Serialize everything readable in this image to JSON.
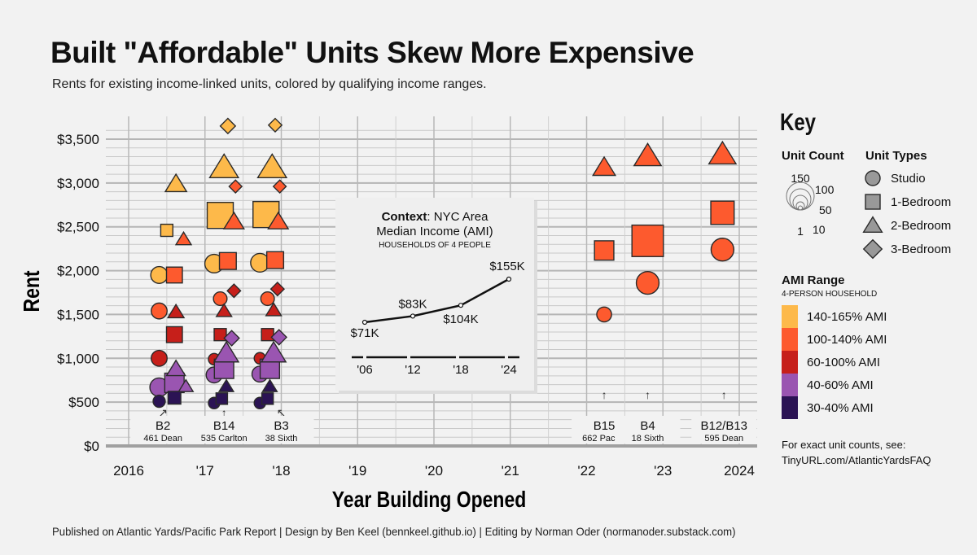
{
  "title": "Built \"Affordable\" Units Skew More Expensive",
  "subtitle": "Rents for existing income-linked units, colored by qualifying income ranges.",
  "credit": "Published on Atlantic Yards/Pacific Park Report | Design by Ben Keel (bennkeel.github.io) | Editing by Norman Oder (normanoder.substack.com)",
  "colors": {
    "ami_140_165": "#fdb94a",
    "ami_100_140": "#fd5a2e",
    "ami_60_100": "#c61f1a",
    "ami_40_60": "#9a55b1",
    "ami_30_40": "#2b1354"
  },
  "chart_data": {
    "type": "scatter",
    "title": "Built \"Affordable\" Units Skew More Expensive",
    "xlabel": "Year Building Opened",
    "ylabel": "Rent",
    "xlim": [
      2015.8,
      2024.4
    ],
    "ylim": [
      0,
      3600
    ],
    "x_ticks": [
      {
        "value": 2016,
        "label": "2016"
      },
      {
        "value": 2017,
        "label": "'17"
      },
      {
        "value": 2018,
        "label": "'18"
      },
      {
        "value": 2019,
        "label": "'19"
      },
      {
        "value": 2020,
        "label": "'20"
      },
      {
        "value": 2021,
        "label": "'21"
      },
      {
        "value": 2022,
        "label": "'22"
      },
      {
        "value": 2023,
        "label": "'23"
      },
      {
        "value": 2024,
        "label": "2024"
      }
    ],
    "y_ticks": [
      {
        "value": 0,
        "label": "$0"
      },
      {
        "value": 500,
        "label": "$500"
      },
      {
        "value": 1000,
        "label": "$1,000"
      },
      {
        "value": 1500,
        "label": "$1,500"
      },
      {
        "value": 2000,
        "label": "$2,000"
      },
      {
        "value": 2500,
        "label": "$2,500"
      },
      {
        "value": 3000,
        "label": "$3,000"
      },
      {
        "value": 3500,
        "label": "$3,500"
      }
    ],
    "buildings": [
      {
        "name": "B2",
        "address": "461 Dean",
        "x": 2016.45,
        "arrow": "↗"
      },
      {
        "name": "B14",
        "address": "535 Carlton",
        "x": 2017.25,
        "arrow": "↑"
      },
      {
        "name": "B3",
        "address": "38 Sixth",
        "x": 2018.0,
        "arrow": "↖"
      },
      {
        "name": "B15",
        "address": "662 Pacific",
        "x": 2022.23,
        "arrow": "↑"
      },
      {
        "name": "B4",
        "address": "18 Sixth",
        "x": 2022.8,
        "arrow": "↑"
      },
      {
        "name": "B12/B13",
        "address": "595 Dean",
        "x": 2023.8,
        "arrow": "↑"
      }
    ],
    "points": [
      {
        "x": 2016.4,
        "y": 670,
        "type": "studio",
        "ami": "40-60",
        "count": 40
      },
      {
        "x": 2016.4,
        "y": 510,
        "type": "studio",
        "ami": "30-40",
        "count": 10
      },
      {
        "x": 2016.4,
        "y": 1000,
        "type": "studio",
        "ami": "60-100",
        "count": 25
      },
      {
        "x": 2016.4,
        "y": 1540,
        "type": "studio",
        "ami": "100-140",
        "count": 25
      },
      {
        "x": 2016.4,
        "y": 1950,
        "type": "studio",
        "ami": "140-165",
        "count": 30
      },
      {
        "x": 2016.6,
        "y": 720,
        "type": "1br",
        "ami": "40-60",
        "count": 45
      },
      {
        "x": 2016.6,
        "y": 550,
        "type": "1br",
        "ami": "30-40",
        "count": 12
      },
      {
        "x": 2016.6,
        "y": 1270,
        "type": "1br",
        "ami": "60-100",
        "count": 25
      },
      {
        "x": 2016.6,
        "y": 1950,
        "type": "1br",
        "ami": "100-140",
        "count": 25
      },
      {
        "x": 2016.5,
        "y": 2460,
        "type": "1br",
        "ami": "140-165",
        "count": 10
      },
      {
        "x": 2016.75,
        "y": 680,
        "type": "2br",
        "ami": "40-60",
        "count": 8
      },
      {
        "x": 2016.62,
        "y": 880,
        "type": "2br",
        "ami": "40-60",
        "count": 20
      },
      {
        "x": 2016.62,
        "y": 1530,
        "type": "2br",
        "ami": "60-100",
        "count": 12
      },
      {
        "x": 2016.72,
        "y": 2360,
        "type": "2br",
        "ami": "100-140",
        "count": 10
      },
      {
        "x": 2016.62,
        "y": 2990,
        "type": "2br",
        "ami": "140-165",
        "count": 30
      },
      {
        "x": 2017.12,
        "y": 810,
        "type": "studio",
        "ami": "40-60",
        "count": 25
      },
      {
        "x": 2017.12,
        "y": 490,
        "type": "studio",
        "ami": "30-40",
        "count": 8
      },
      {
        "x": 2017.12,
        "y": 990,
        "type": "studio",
        "ami": "60-100",
        "count": 8
      },
      {
        "x": 2017.2,
        "y": 1680,
        "type": "studio",
        "ami": "100-140",
        "count": 15
      },
      {
        "x": 2017.12,
        "y": 2080,
        "type": "studio",
        "ami": "140-165",
        "count": 40
      },
      {
        "x": 2017.25,
        "y": 880,
        "type": "1br",
        "ami": "40-60",
        "count": 45
      },
      {
        "x": 2017.22,
        "y": 540,
        "type": "1br",
        "ami": "30-40",
        "count": 8
      },
      {
        "x": 2017.2,
        "y": 1270,
        "type": "1br",
        "ami": "60-100",
        "count": 10
      },
      {
        "x": 2017.3,
        "y": 2110,
        "type": "1br",
        "ami": "100-140",
        "count": 30
      },
      {
        "x": 2017.2,
        "y": 2630,
        "type": "1br",
        "ami": "140-165",
        "count": 100
      },
      {
        "x": 2017.28,
        "y": 680,
        "type": "2br",
        "ami": "30-40",
        "count": 8
      },
      {
        "x": 2017.28,
        "y": 1060,
        "type": "2br",
        "ami": "40-60",
        "count": 45
      },
      {
        "x": 2017.25,
        "y": 1540,
        "type": "2br",
        "ami": "60-100",
        "count": 10
      },
      {
        "x": 2017.38,
        "y": 2560,
        "type": "2br",
        "ami": "100-140",
        "count": 25
      },
      {
        "x": 2017.25,
        "y": 3180,
        "type": "2br",
        "ami": "140-165",
        "count": 70
      },
      {
        "x": 2017.35,
        "y": 1230,
        "type": "3br",
        "ami": "40-60",
        "count": 10
      },
      {
        "x": 2017.38,
        "y": 1770,
        "type": "3br",
        "ami": "60-100",
        "count": 6
      },
      {
        "x": 2017.4,
        "y": 2960,
        "type": "3br",
        "ami": "100-140",
        "count": 5
      },
      {
        "x": 2017.3,
        "y": 3650,
        "type": "3br",
        "ami": "140-165",
        "count": 10
      },
      {
        "x": 2017.72,
        "y": 820,
        "type": "studio",
        "ami": "40-60",
        "count": 25
      },
      {
        "x": 2017.72,
        "y": 490,
        "type": "studio",
        "ami": "30-40",
        "count": 8
      },
      {
        "x": 2017.72,
        "y": 1000,
        "type": "studio",
        "ami": "60-100",
        "count": 8
      },
      {
        "x": 2017.82,
        "y": 1680,
        "type": "studio",
        "ami": "100-140",
        "count": 15
      },
      {
        "x": 2017.72,
        "y": 2090,
        "type": "studio",
        "ami": "140-165",
        "count": 40
      },
      {
        "x": 2017.85,
        "y": 880,
        "type": "1br",
        "ami": "40-60",
        "count": 45
      },
      {
        "x": 2017.82,
        "y": 540,
        "type": "1br",
        "ami": "30-40",
        "count": 8
      },
      {
        "x": 2017.82,
        "y": 1270,
        "type": "1br",
        "ami": "60-100",
        "count": 10
      },
      {
        "x": 2017.92,
        "y": 2120,
        "type": "1br",
        "ami": "100-140",
        "count": 30
      },
      {
        "x": 2017.8,
        "y": 2640,
        "type": "1br",
        "ami": "140-165",
        "count": 100
      },
      {
        "x": 2017.85,
        "y": 680,
        "type": "2br",
        "ami": "30-40",
        "count": 8
      },
      {
        "x": 2017.9,
        "y": 1060,
        "type": "2br",
        "ami": "40-60",
        "count": 45
      },
      {
        "x": 2017.9,
        "y": 1550,
        "type": "2br",
        "ami": "60-100",
        "count": 10
      },
      {
        "x": 2017.96,
        "y": 2560,
        "type": "2br",
        "ami": "100-140",
        "count": 25
      },
      {
        "x": 2017.88,
        "y": 3180,
        "type": "2br",
        "ami": "140-165",
        "count": 70
      },
      {
        "x": 2017.97,
        "y": 1240,
        "type": "3br",
        "ami": "40-60",
        "count": 10
      },
      {
        "x": 2017.95,
        "y": 1790,
        "type": "3br",
        "ami": "60-100",
        "count": 6
      },
      {
        "x": 2017.98,
        "y": 2960,
        "type": "3br",
        "ami": "100-140",
        "count": 5
      },
      {
        "x": 2017.92,
        "y": 3660,
        "type": "3br",
        "ami": "140-165",
        "count": 6
      },
      {
        "x": 2022.23,
        "y": 1500,
        "type": "studio",
        "ami": "100-140",
        "count": 20
      },
      {
        "x": 2022.23,
        "y": 2230,
        "type": "1br",
        "ami": "100-140",
        "count": 45
      },
      {
        "x": 2022.23,
        "y": 3180,
        "type": "2br",
        "ami": "100-140",
        "count": 35
      },
      {
        "x": 2022.8,
        "y": 1860,
        "type": "studio",
        "ami": "100-140",
        "count": 70
      },
      {
        "x": 2022.8,
        "y": 2340,
        "type": "1br",
        "ami": "100-140",
        "count": 160
      },
      {
        "x": 2022.8,
        "y": 3310,
        "type": "2br",
        "ami": "100-140",
        "count": 60
      },
      {
        "x": 2023.78,
        "y": 2240,
        "type": "studio",
        "ami": "100-140",
        "count": 70
      },
      {
        "x": 2023.78,
        "y": 2660,
        "type": "1br",
        "ami": "100-140",
        "count": 75
      },
      {
        "x": 2023.78,
        "y": 3330,
        "type": "2br",
        "ami": "100-140",
        "count": 60
      }
    ],
    "inset": {
      "type": "line",
      "title_bold": "Context",
      "title_rest": ": NYC Area",
      "title_line2": "Median Income (AMI)",
      "subtitle": "HOUSEHOLDS OF 4 PEOPLE",
      "x": [
        2006,
        2012,
        2018,
        2024
      ],
      "x_labels": [
        "'06",
        "'12",
        "'18",
        "'24"
      ],
      "values": [
        71,
        83,
        104,
        155
      ],
      "value_labels": [
        "$71K",
        "$83K",
        "$104K",
        "$155K"
      ]
    }
  },
  "key": {
    "title": "Key",
    "unit_count_title": "Unit Count",
    "unit_count_labels": [
      "150",
      "100",
      "50",
      "1",
      "10"
    ],
    "unit_types_title": "Unit Types",
    "unit_types": [
      {
        "type": "studio",
        "label": "Studio"
      },
      {
        "type": "1br",
        "label": "1-Bedroom"
      },
      {
        "type": "2br",
        "label": "2-Bedroom"
      },
      {
        "type": "3br",
        "label": "3-Bedroom"
      }
    ],
    "ami_title": "AMI Range",
    "ami_subtitle": "4-PERSON HOUSEHOLD",
    "ami_ranges": [
      {
        "key": "140-165",
        "label": "140-165% AMI"
      },
      {
        "key": "100-140",
        "label": "100-140% AMI"
      },
      {
        "key": "60-100",
        "label": "60-100% AMI"
      },
      {
        "key": "40-60",
        "label": "40-60% AMI"
      },
      {
        "key": "30-40",
        "label": "30-40% AMI"
      }
    ],
    "note_line1": "For exact unit counts, see:",
    "note_line2": "TinyURL.com/AtlanticYardsFAQ"
  }
}
